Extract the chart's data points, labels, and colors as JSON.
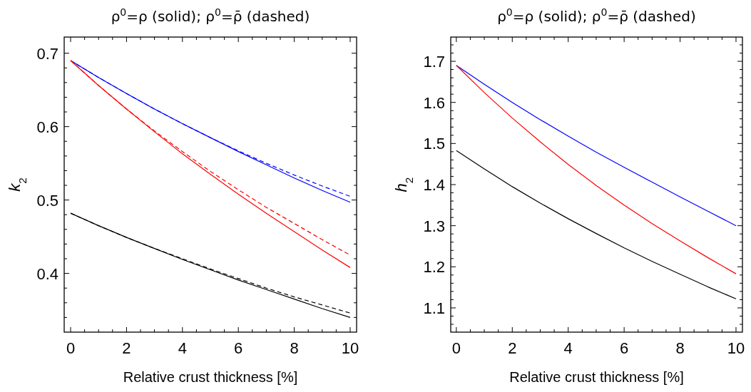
{
  "chart_data": [
    {
      "type": "line",
      "title": "ρ$^{0}$=ρ (solid); ρ$^{0}$=ρ̄ (dashed)",
      "xlabel": "Relative crust thickness [%]",
      "ylabel": "k$_{2}$",
      "x": [
        0,
        1,
        2,
        3,
        4,
        5,
        6,
        7,
        8,
        9,
        10
      ],
      "xlim": [
        -0.23,
        10.23
      ],
      "ylim": [
        0.32,
        0.722
      ],
      "xticks": [
        0,
        {
          "value": 0.5,
          "label": null
        },
        {
          "value": 1,
          "label": null
        },
        {
          "value": 1.5,
          "label": null
        },
        2,
        {
          "value": 2.5,
          "label": null
        },
        {
          "value": 3,
          "label": null
        },
        {
          "value": 3.5,
          "label": null
        },
        4,
        {
          "value": 4.5,
          "label": null
        },
        {
          "value": 5,
          "label": null
        },
        {
          "value": 5.5,
          "label": null
        },
        6,
        {
          "value": 6.5,
          "label": null
        },
        {
          "value": 7,
          "label": null
        },
        {
          "value": 7.5,
          "label": null
        },
        8,
        {
          "value": 8.5,
          "label": null
        },
        {
          "value": 9,
          "label": null
        },
        {
          "value": 9.5,
          "label": null
        },
        10
      ],
      "yticks": [
        {
          "value": 0.34,
          "label": null
        },
        {
          "value": 0.36,
          "label": null
        },
        {
          "value": 0.38,
          "label": null
        },
        0.4,
        {
          "value": 0.42,
          "label": null
        },
        {
          "value": 0.44,
          "label": null
        },
        {
          "value": 0.46,
          "label": null
        },
        {
          "value": 0.48,
          "label": null
        },
        0.5,
        {
          "value": 0.52,
          "label": null
        },
        {
          "value": 0.54,
          "label": null
        },
        {
          "value": 0.56,
          "label": null
        },
        {
          "value": 0.58,
          "label": null
        },
        0.6,
        {
          "value": 0.62,
          "label": null
        },
        {
          "value": 0.64,
          "label": null
        },
        {
          "value": 0.66,
          "label": null
        },
        {
          "value": 0.68,
          "label": null
        },
        0.7
      ],
      "grid": false,
      "marker": "none",
      "series": [
        {
          "color": "#0000ff",
          "line_style": "solid",
          "values": [
            0.69,
            0.667,
            0.645,
            0.624,
            0.604,
            0.585,
            0.566,
            0.548,
            0.53,
            0.513,
            0.497
          ]
        },
        {
          "color": "#0000ff",
          "line_style": "dashed",
          "values": [
            0.69,
            0.667,
            0.645,
            0.624,
            0.604,
            0.585,
            0.567,
            0.55,
            0.534,
            0.519,
            0.505
          ]
        },
        {
          "color": "#ff0000",
          "line_style": "solid",
          "values": [
            0.69,
            0.656,
            0.624,
            0.593,
            0.563,
            0.535,
            0.508,
            0.482,
            0.457,
            0.432,
            0.408
          ]
        },
        {
          "color": "#ff0000",
          "line_style": "dashed",
          "values": [
            0.69,
            0.656,
            0.624,
            0.594,
            0.566,
            0.539,
            0.514,
            0.49,
            0.468,
            0.446,
            0.425
          ]
        },
        {
          "color": "#000000",
          "line_style": "solid",
          "values": [
            0.482,
            0.465,
            0.449,
            0.434,
            0.419,
            0.405,
            0.391,
            0.378,
            0.365,
            0.352,
            0.34
          ]
        },
        {
          "color": "#000000",
          "line_style": "dashed",
          "values": [
            0.482,
            0.465,
            0.449,
            0.434,
            0.42,
            0.406,
            0.393,
            0.38,
            0.368,
            0.357,
            0.346
          ]
        }
      ]
    },
    {
      "type": "line",
      "title": "ρ$^{0}$=ρ (solid); ρ$^{0}$=ρ̄ (dashed)",
      "xlabel": "Relative crust thickness [%]",
      "ylabel": "h$_{2}$",
      "x": [
        0,
        1,
        2,
        3,
        4,
        5,
        6,
        7,
        8,
        9,
        10
      ],
      "xlim": [
        -0.2,
        10.23
      ],
      "ylim": [
        1.041,
        1.759
      ],
      "xticks": [
        0,
        {
          "value": 0.5,
          "label": null
        },
        {
          "value": 1,
          "label": null
        },
        {
          "value": 1.5,
          "label": null
        },
        2,
        {
          "value": 2.5,
          "label": null
        },
        {
          "value": 3,
          "label": null
        },
        {
          "value": 3.5,
          "label": null
        },
        4,
        {
          "value": 4.5,
          "label": null
        },
        {
          "value": 5,
          "label": null
        },
        {
          "value": 5.5,
          "label": null
        },
        6,
        {
          "value": 6.5,
          "label": null
        },
        {
          "value": 7,
          "label": null
        },
        {
          "value": 7.5,
          "label": null
        },
        8,
        {
          "value": 8.5,
          "label": null
        },
        {
          "value": 9,
          "label": null
        },
        {
          "value": 9.5,
          "label": null
        },
        10
      ],
      "yticks": [
        {
          "value": 1.06,
          "label": null
        },
        {
          "value": 1.08,
          "label": null
        },
        1.1,
        {
          "value": 1.12,
          "label": null
        },
        {
          "value": 1.14,
          "label": null
        },
        {
          "value": 1.16,
          "label": null
        },
        {
          "value": 1.18,
          "label": null
        },
        1.2,
        {
          "value": 1.22,
          "label": null
        },
        {
          "value": 1.24,
          "label": null
        },
        {
          "value": 1.26,
          "label": null
        },
        {
          "value": 1.28,
          "label": null
        },
        1.3,
        {
          "value": 1.32,
          "label": null
        },
        {
          "value": 1.34,
          "label": null
        },
        {
          "value": 1.36,
          "label": null
        },
        {
          "value": 1.38,
          "label": null
        },
        1.4,
        {
          "value": 1.42,
          "label": null
        },
        {
          "value": 1.44,
          "label": null
        },
        {
          "value": 1.46,
          "label": null
        },
        {
          "value": 1.48,
          "label": null
        },
        1.5,
        {
          "value": 1.52,
          "label": null
        },
        {
          "value": 1.54,
          "label": null
        },
        {
          "value": 1.56,
          "label": null
        },
        {
          "value": 1.58,
          "label": null
        },
        1.6,
        {
          "value": 1.62,
          "label": null
        },
        {
          "value": 1.64,
          "label": null
        },
        {
          "value": 1.66,
          "label": null
        },
        {
          "value": 1.68,
          "label": null
        },
        1.7,
        {
          "value": 1.72,
          "label": null
        },
        {
          "value": 1.74,
          "label": null
        }
      ],
      "grid": false,
      "marker": "none",
      "series": [
        {
          "color": "#0000ff",
          "line_style": "solid",
          "values": [
            1.69,
            1.644,
            1.6,
            1.558,
            1.518,
            1.479,
            1.442,
            1.406,
            1.37,
            1.335,
            1.3
          ]
        },
        {
          "color": "#ff0000",
          "line_style": "solid",
          "values": [
            1.69,
            1.624,
            1.562,
            1.504,
            1.449,
            1.398,
            1.35,
            1.305,
            1.263,
            1.222,
            1.183
          ]
        },
        {
          "color": "#000000",
          "line_style": "solid",
          "values": [
            1.483,
            1.438,
            1.395,
            1.355,
            1.317,
            1.281,
            1.246,
            1.213,
            1.182,
            1.151,
            1.122
          ]
        }
      ]
    }
  ]
}
